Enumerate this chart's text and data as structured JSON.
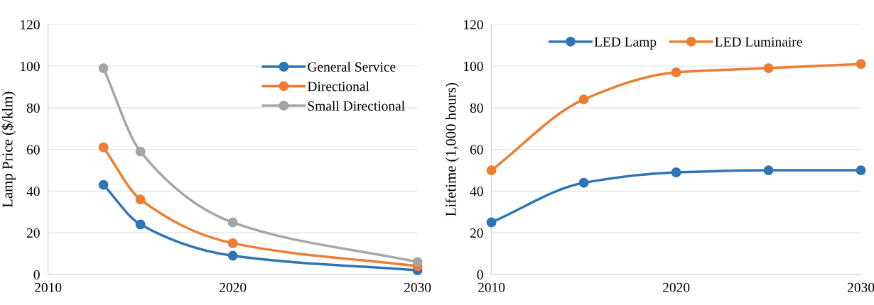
{
  "chart_data": [
    {
      "type": "line",
      "ylabel": "Lamp Price ($/klm)",
      "x": [
        2013,
        2015,
        2020,
        2030
      ],
      "xlim": [
        2010,
        2030
      ],
      "xticks": [
        2010,
        2020,
        2030
      ],
      "ylim": [
        0,
        120
      ],
      "yticks": [
        0,
        20,
        40,
        60,
        80,
        100,
        120
      ],
      "grid": "y",
      "legend": "top right",
      "marker": "circle",
      "line_style": "solid",
      "series": [
        {
          "name": "General Service",
          "color": "#2e75b6",
          "values": [
            43,
            24,
            9,
            2
          ]
        },
        {
          "name": "Directional",
          "color": "#ed7d31",
          "values": [
            61,
            36,
            15,
            4
          ]
        },
        {
          "name": "Small Directional",
          "color": "#a5a5a5",
          "values": [
            99,
            59,
            25,
            6
          ]
        }
      ]
    },
    {
      "type": "line",
      "ylabel": "Lifetime (1,000 hours)",
      "x": [
        2010,
        2015,
        2020,
        2025,
        2030
      ],
      "xlim": [
        2010,
        2030
      ],
      "xticks": [
        2010,
        2020,
        2030
      ],
      "ylim": [
        0,
        120
      ],
      "yticks": [
        0,
        20,
        40,
        60,
        80,
        100,
        120
      ],
      "grid": "y",
      "legend": "top",
      "marker": "circle",
      "line_style": "solid",
      "series": [
        {
          "name": "LED Lamp",
          "color": "#2e75b6",
          "values": [
            25,
            44,
            49,
            50,
            50
          ]
        },
        {
          "name": "LED Luminaire",
          "color": "#ed7d31",
          "values": [
            50,
            84,
            97,
            99,
            101
          ]
        }
      ]
    }
  ]
}
